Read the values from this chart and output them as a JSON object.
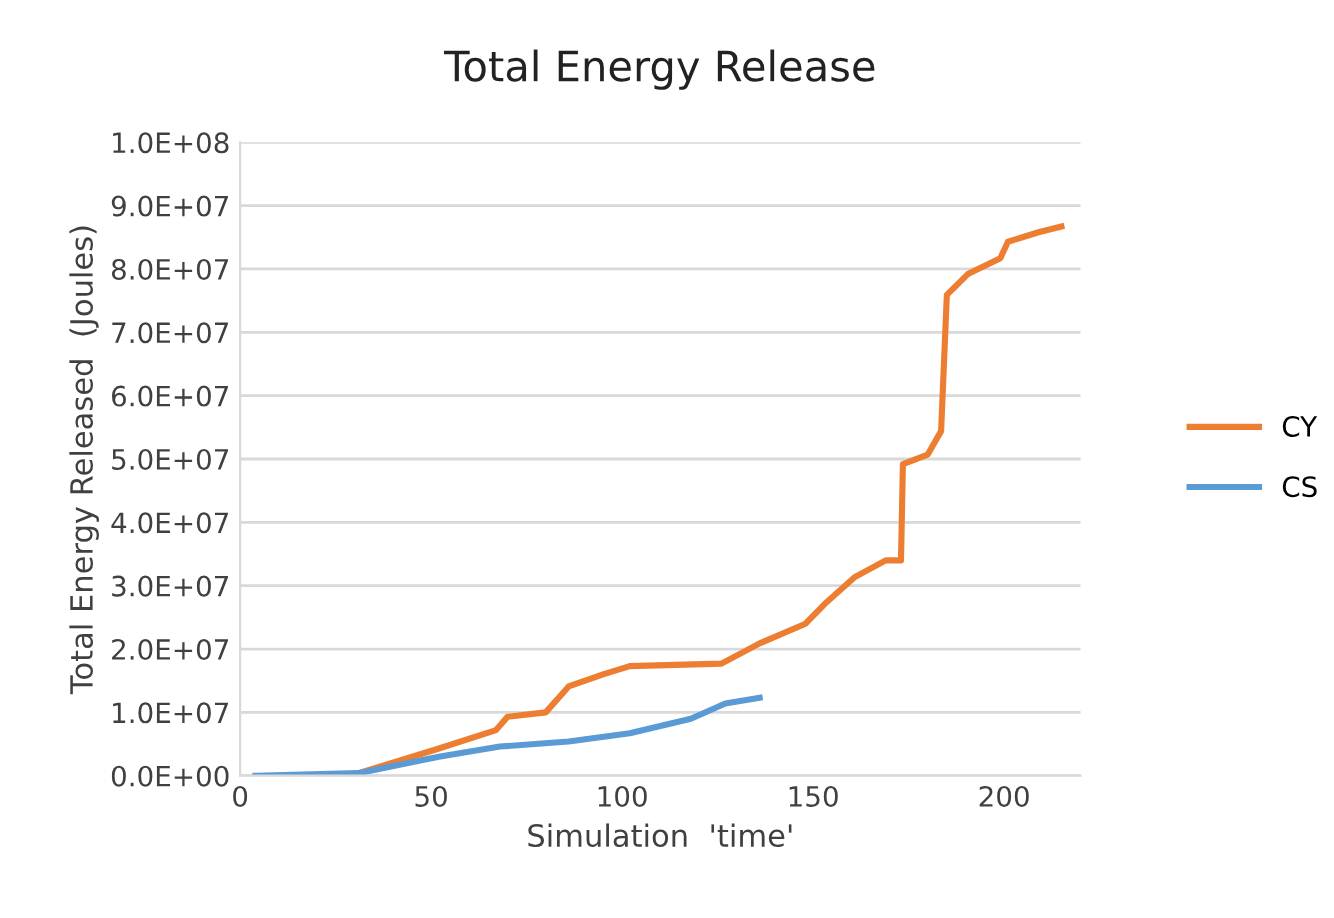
{
  "chart_data": {
    "type": "line",
    "title": "Total Energy Release",
    "xlabel": "Simulation  'time'",
    "ylabel": "Total Energy Released  (Joules)",
    "xlim": [
      0,
      220
    ],
    "xticks": [
      0,
      50,
      100,
      150,
      200
    ],
    "ylim": [
      0,
      100000000
    ],
    "yticks": [
      {
        "value": 0,
        "label": "0.0E+00"
      },
      {
        "value": 10000000,
        "label": "1.0E+07"
      },
      {
        "value": 20000000,
        "label": "2.0E+07"
      },
      {
        "value": 30000000,
        "label": "3.0E+07"
      },
      {
        "value": 40000000,
        "label": "4.0E+07"
      },
      {
        "value": 50000000,
        "label": "5.0E+07"
      },
      {
        "value": 60000000,
        "label": "6.0E+07"
      },
      {
        "value": 70000000,
        "label": "7.0E+07"
      },
      {
        "value": 80000000,
        "label": "8.0E+07"
      },
      {
        "value": 90000000,
        "label": "9.0E+07"
      },
      {
        "value": 100000000,
        "label": "1.0E+08"
      }
    ],
    "grid": "y",
    "legend": "right",
    "marker": "none",
    "line_style": "solid",
    "series": [
      {
        "name": "CY",
        "color": "#ed7d31",
        "x": [
          31,
          51,
          67,
          70,
          80,
          86,
          95,
          102,
          126,
          136,
          148,
          153,
          161,
          169,
          173,
          173.5,
          180,
          183.5,
          185,
          190.5,
          199,
          201,
          209,
          215
        ],
        "values": [
          400000,
          4100000,
          7200000,
          9300000,
          10000000,
          14100000,
          16000000,
          17300000,
          17700000,
          20900000,
          24000000,
          27100000,
          31400000,
          34000000,
          34000000,
          49200000,
          50700000,
          54400000,
          75900000,
          79200000,
          81700000,
          84300000,
          85800000,
          86700000
        ]
      },
      {
        "name": "CS",
        "color": "#5b9bd5",
        "x": [
          4,
          31,
          52,
          68,
          86,
          102,
          118,
          127,
          136
        ],
        "values": [
          0,
          400000,
          3000000,
          4600000,
          5400000,
          6700000,
          9000000,
          11400000,
          12300000
        ]
      }
    ]
  }
}
